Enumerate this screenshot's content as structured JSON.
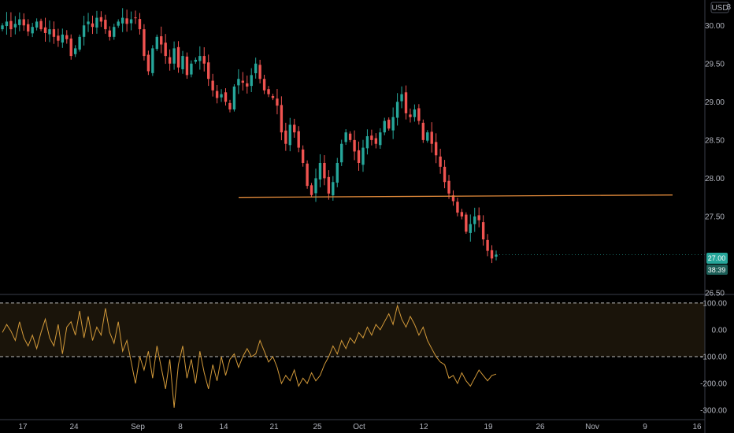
{
  "currency_label": "USD",
  "price_axis": {
    "ticks": [
      "30.00",
      "29.50",
      "29.00",
      "28.50",
      "28.00",
      "27.50",
      "26.50"
    ],
    "top_partial": "3"
  },
  "last_price": {
    "value": "27.00",
    "countdown": "38:39",
    "color": "#26a69a"
  },
  "oscillator_axis": {
    "ticks": [
      "100.00",
      "0.00",
      "-100.00",
      "-200.00",
      "-300.00"
    ]
  },
  "time_axis": {
    "ticks": [
      "17",
      "24",
      "Sep",
      "8",
      "14",
      "21",
      "25",
      "Oct",
      "12",
      "19",
      "26",
      "Nov",
      "9",
      "16"
    ]
  },
  "colors": {
    "up": "#26a69a",
    "down": "#ef5350",
    "level_line": "#e0893a",
    "oscillator": "#d39a3a",
    "band_fill": "#1a140a"
  },
  "chart_data": [
    {
      "type": "candlestick",
      "y_range": [
        26.5,
        30.25
      ],
      "horizontal_level": 27.75,
      "close_series": [
        30.0,
        30.05,
        29.95,
        30.02,
        30.08,
        30.0,
        29.92,
        29.98,
        30.05,
        29.95,
        29.9,
        29.95,
        29.85,
        29.8,
        29.88,
        29.82,
        29.6,
        29.7,
        29.85,
        30.0,
        30.05,
        29.98,
        30.1,
        30.05,
        29.95,
        29.85,
        29.98,
        30.05,
        30.1,
        30.02,
        30.08,
        30.1,
        29.95,
        29.6,
        29.4,
        29.7,
        29.85,
        29.75,
        29.6,
        29.5,
        29.7,
        29.45,
        29.6,
        29.35,
        29.5,
        29.55,
        29.6,
        29.5,
        29.3,
        29.15,
        29.05,
        29.1,
        29.0,
        28.9,
        29.2,
        29.3,
        29.25,
        29.2,
        29.35,
        29.5,
        29.3,
        29.15,
        29.1,
        29.05,
        28.95,
        28.6,
        28.45,
        28.7,
        28.6,
        28.4,
        28.2,
        27.9,
        27.78,
        28.0,
        28.2,
        28.0,
        27.8,
        27.95,
        28.2,
        28.45,
        28.6,
        28.5,
        28.35,
        28.2,
        28.4,
        28.55,
        28.5,
        28.45,
        28.6,
        28.75,
        28.65,
        28.8,
        29.0,
        29.1,
        28.85,
        28.8,
        28.9,
        28.75,
        28.5,
        28.6,
        28.45,
        28.3,
        28.15,
        27.95,
        27.8,
        27.7,
        27.55,
        27.5,
        27.3,
        27.4,
        27.5,
        27.45,
        27.2,
        27.05,
        26.95,
        27.0
      ]
    },
    {
      "type": "line",
      "y_range": [
        -320,
        120
      ],
      "reference_lines": [
        100,
        -100
      ],
      "values": [
        -10,
        20,
        -5,
        -40,
        30,
        -30,
        -60,
        -20,
        -70,
        -10,
        40,
        -30,
        -60,
        20,
        -90,
        10,
        30,
        -20,
        70,
        -30,
        50,
        -40,
        10,
        -20,
        80,
        -10,
        -50,
        30,
        -80,
        -40,
        -120,
        -200,
        -100,
        -150,
        -80,
        -180,
        -60,
        -140,
        -220,
        -110,
        -290,
        -130,
        -60,
        -180,
        -110,
        -200,
        -80,
        -160,
        -220,
        -130,
        -190,
        -100,
        -170,
        -110,
        -90,
        -140,
        -100,
        -70,
        -100,
        -90,
        -40,
        -80,
        -120,
        -100,
        -140,
        -200,
        -170,
        -190,
        -150,
        -210,
        -180,
        -200,
        -160,
        -190,
        -170,
        -130,
        -100,
        -60,
        -90,
        -40,
        -70,
        -30,
        -50,
        -10,
        -30,
        10,
        -20,
        20,
        0,
        30,
        60,
        20,
        90,
        40,
        10,
        50,
        20,
        -20,
        10,
        -40,
        -70,
        -100,
        -120,
        -130,
        -180,
        -170,
        -200,
        -160,
        -190,
        -210,
        -180,
        -150,
        -170,
        -190,
        -170,
        -165
      ],
      "band_fill": true
    }
  ]
}
